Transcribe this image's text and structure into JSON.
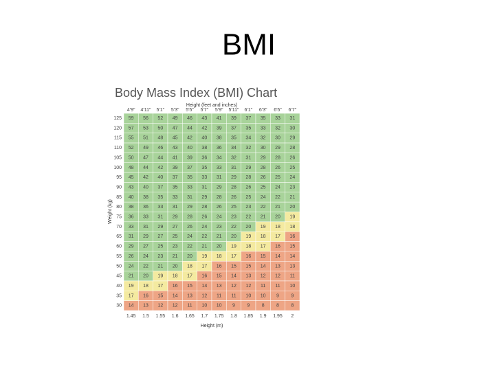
{
  "slide": {
    "title": "BMI"
  },
  "chart": {
    "title": "Body Mass Index (BMI) Chart",
    "top_axis_label": "Height (feet and inches)",
    "bottom_axis_label": "Height (m)",
    "left_axis_label": "Weight (kg)",
    "heights_ft": [
      "4'9\"",
      "4'11\"",
      "5'1\"",
      "5'3\"",
      "5'5\"",
      "5'7\"",
      "5'9\"",
      "5'11\"",
      "6'1\"",
      "6'3\"",
      "6'5\"",
      "6'7\""
    ],
    "heights_m": [
      1.45,
      1.5,
      1.55,
      1.6,
      1.65,
      1.7,
      1.75,
      1.8,
      1.85,
      1.9,
      1.95,
      2
    ],
    "weights_kg": [
      125,
      120,
      115,
      110,
      105,
      100,
      95,
      90,
      85,
      80,
      75,
      70,
      65,
      60,
      55,
      50,
      45,
      40,
      35,
      30
    ],
    "bands": [
      {
        "min": 20,
        "color": "#a8d39a"
      },
      {
        "min": 17,
        "color": "#f4eaa0"
      },
      {
        "min": 0,
        "color": "#eea585"
      }
    ],
    "rows": [
      [
        59,
        56,
        52,
        49,
        46,
        43,
        41,
        39,
        37,
        35,
        33,
        31
      ],
      [
        57,
        53,
        50,
        47,
        44,
        42,
        39,
        37,
        35,
        33,
        32,
        30
      ],
      [
        55,
        51,
        48,
        45,
        42,
        40,
        38,
        35,
        34,
        32,
        30,
        29
      ],
      [
        52,
        49,
        46,
        43,
        40,
        38,
        36,
        34,
        32,
        30,
        29,
        28
      ],
      [
        50,
        47,
        44,
        41,
        39,
        36,
        34,
        32,
        31,
        29,
        28,
        26
      ],
      [
        48,
        44,
        42,
        39,
        37,
        35,
        33,
        31,
        29,
        28,
        26,
        25
      ],
      [
        45,
        42,
        40,
        37,
        35,
        33,
        31,
        29,
        28,
        26,
        25,
        24
      ],
      [
        43,
        40,
        37,
        35,
        33,
        31,
        29,
        28,
        26,
        25,
        24,
        23
      ],
      [
        40,
        38,
        35,
        33,
        31,
        29,
        28,
        26,
        25,
        24,
        22,
        21
      ],
      [
        38,
        36,
        33,
        31,
        29,
        28,
        26,
        25,
        23,
        22,
        21,
        20
      ],
      [
        36,
        33,
        31,
        29,
        28,
        26,
        24,
        23,
        22,
        21,
        20,
        19
      ],
      [
        33,
        31,
        29,
        27,
        26,
        24,
        23,
        22,
        20,
        19,
        18,
        18
      ],
      [
        31,
        29,
        27,
        25,
        24,
        22,
        21,
        20,
        19,
        18,
        17,
        16
      ],
      [
        29,
        27,
        25,
        23,
        22,
        21,
        20,
        19,
        18,
        17,
        16,
        15
      ],
      [
        26,
        24,
        23,
        21,
        20,
        19,
        18,
        17,
        16,
        15,
        14,
        14
      ],
      [
        24,
        22,
        21,
        20,
        18,
        17,
        16,
        15,
        15,
        14,
        13,
        13
      ],
      [
        21,
        20,
        19,
        18,
        17,
        16,
        15,
        14,
        13,
        12,
        12,
        11
      ],
      [
        19,
        18,
        17,
        16,
        15,
        14,
        13,
        12,
        12,
        11,
        11,
        10
      ],
      [
        17,
        16,
        15,
        14,
        13,
        12,
        11,
        11,
        10,
        10,
        9,
        9
      ],
      [
        14,
        13,
        12,
        12,
        11,
        10,
        10,
        9,
        9,
        8,
        8,
        8
      ]
    ]
  }
}
